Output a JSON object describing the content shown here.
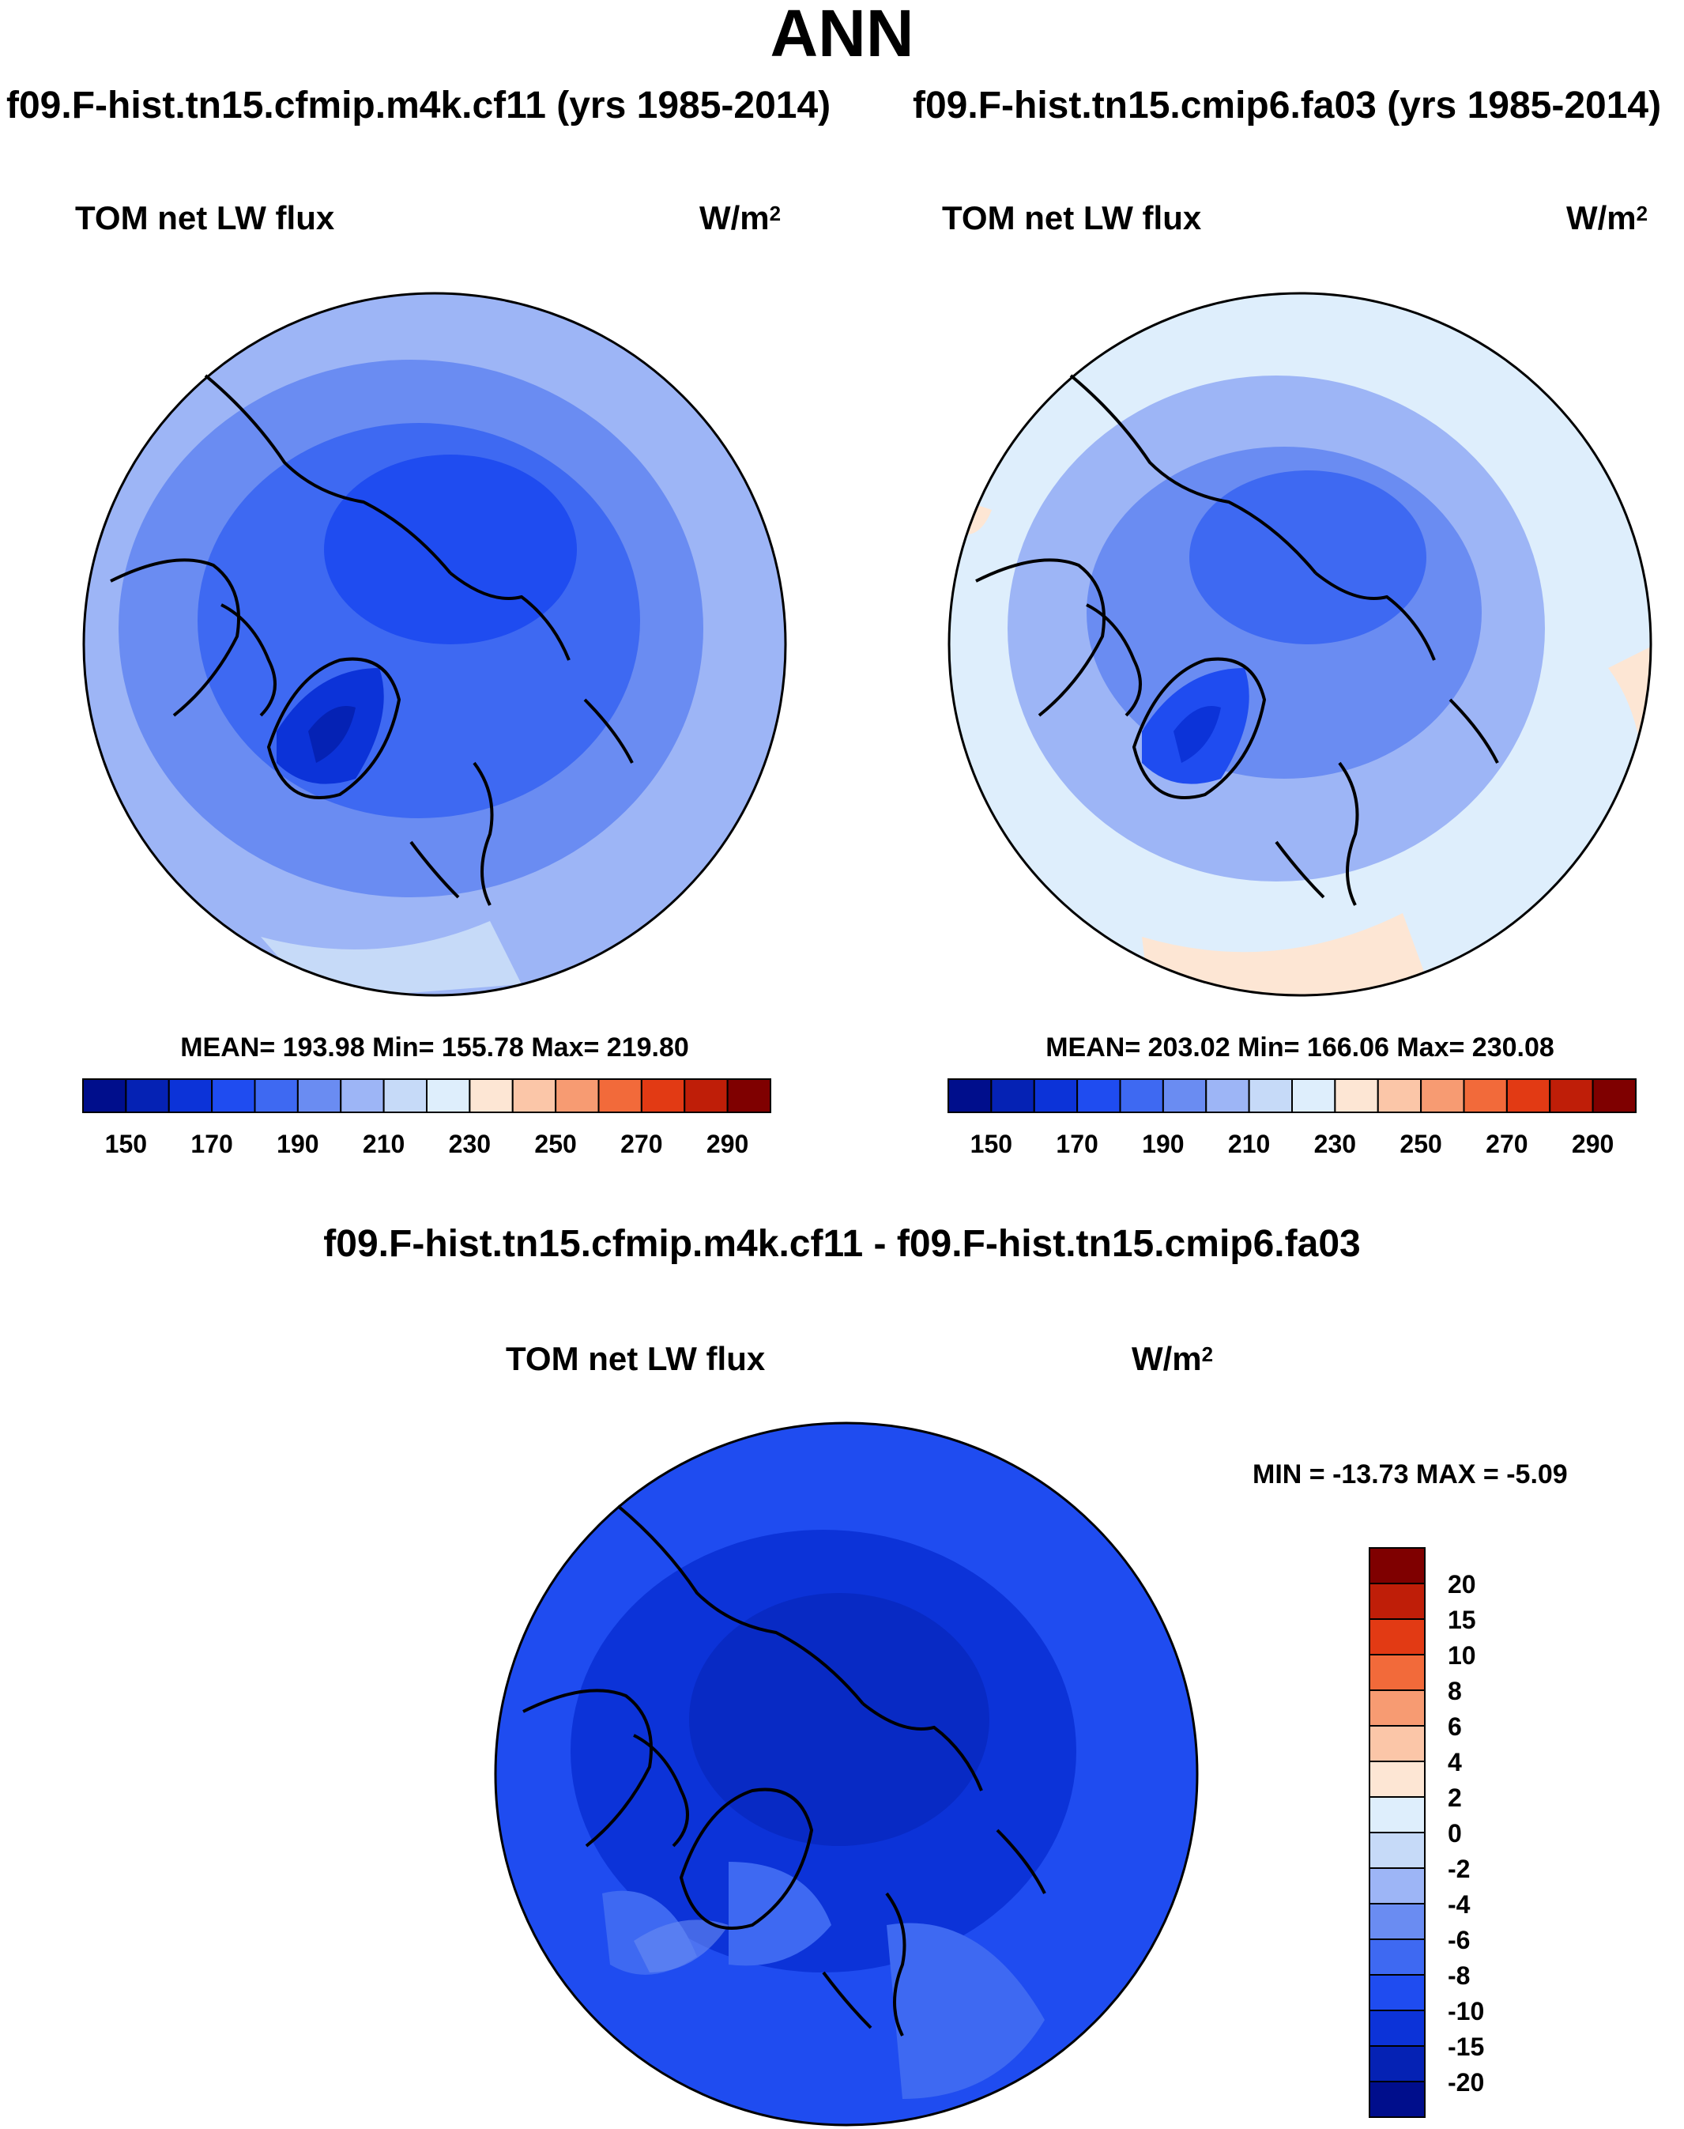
{
  "title": "ANN",
  "panels": [
    {
      "case_title": "f09.F-hist.tn15.cfmip.m4k.cf11 (yrs 1985-2014)",
      "var_label": "TOM net LW flux",
      "units_base": "W/m",
      "units_exp": "2",
      "stats": "MEAN= 193.98  Min= 155.78  Max= 219.80"
    },
    {
      "case_title": "f09.F-hist.tn15.cmip6.fa03 (yrs 1985-2014)",
      "var_label": "TOM net LW flux",
      "units_base": "W/m",
      "units_exp": "2",
      "stats": "MEAN= 203.02  Min= 166.06  Max= 230.08"
    }
  ],
  "diff": {
    "title": "f09.F-hist.tn15.cfmip.m4k.cf11 - f09.F-hist.tn15.cmip6.fa03",
    "var_label": "TOM net LW flux",
    "units_base": "W/m",
    "units_exp": "2",
    "minmax": "MIN = -13.73 MAX =  -5.09"
  },
  "chart_data": [
    {
      "type": "heatmap",
      "projection": "north polar stereographic",
      "title": "f09.F-hist.tn15.cfmip.m4k.cf11 (yrs 1985-2014)",
      "variable": "TOM net LW flux",
      "units": "W/m2",
      "mean": 193.98,
      "min": 155.78,
      "max": 219.8,
      "colorbar": {
        "levels": [
          150,
          160,
          170,
          180,
          190,
          200,
          210,
          220,
          230,
          240,
          250,
          260,
          270,
          280,
          290
        ],
        "tick_labels": [
          "150",
          "170",
          "190",
          "210",
          "230",
          "250",
          "270",
          "290"
        ],
        "colors": [
          "#000e8c",
          "#0522b4",
          "#0c33d8",
          "#1f4cf0",
          "#3e69f2",
          "#6a8cf2",
          "#9db5f6",
          "#c6daf8",
          "#deeefc",
          "#fde6d4",
          "#fbc6a8",
          "#f79b72",
          "#f26a3a",
          "#e23a14",
          "#bf1e08",
          "#7f0000"
        ]
      }
    },
    {
      "type": "heatmap",
      "projection": "north polar stereographic",
      "title": "f09.F-hist.tn15.cmip6.fa03 (yrs 1985-2014)",
      "variable": "TOM net LW flux",
      "units": "W/m2",
      "mean": 203.02,
      "min": 166.06,
      "max": 230.08,
      "colorbar": {
        "levels": [
          150,
          160,
          170,
          180,
          190,
          200,
          210,
          220,
          230,
          240,
          250,
          260,
          270,
          280,
          290
        ],
        "tick_labels": [
          "150",
          "170",
          "190",
          "210",
          "230",
          "250",
          "270",
          "290"
        ],
        "colors": [
          "#000e8c",
          "#0522b4",
          "#0c33d8",
          "#1f4cf0",
          "#3e69f2",
          "#6a8cf2",
          "#9db5f6",
          "#c6daf8",
          "#deeefc",
          "#fde6d4",
          "#fbc6a8",
          "#f79b72",
          "#f26a3a",
          "#e23a14",
          "#bf1e08",
          "#7f0000"
        ]
      }
    },
    {
      "type": "heatmap",
      "projection": "north polar stereographic",
      "title": "f09.F-hist.tn15.cfmip.m4k.cf11 - f09.F-hist.tn15.cmip6.fa03",
      "variable": "TOM net LW flux",
      "units": "W/m2",
      "min": -13.73,
      "max": -5.09,
      "colorbar": {
        "levels": [
          "20",
          "15",
          "10",
          "8",
          "6",
          "4",
          "2",
          "0",
          "-2",
          "-4",
          "-6",
          "-8",
          "-10",
          "-15",
          "-20"
        ],
        "colors_top_to_bottom": [
          "#7f0000",
          "#bf1e08",
          "#e23a14",
          "#f26a3a",
          "#f79b72",
          "#fbc6a8",
          "#fde6d4",
          "#deeefc",
          "#c6daf8",
          "#9db5f6",
          "#6a8cf2",
          "#3e69f2",
          "#1f4cf0",
          "#0c33d8",
          "#0522b4",
          "#000e8c"
        ]
      }
    }
  ]
}
